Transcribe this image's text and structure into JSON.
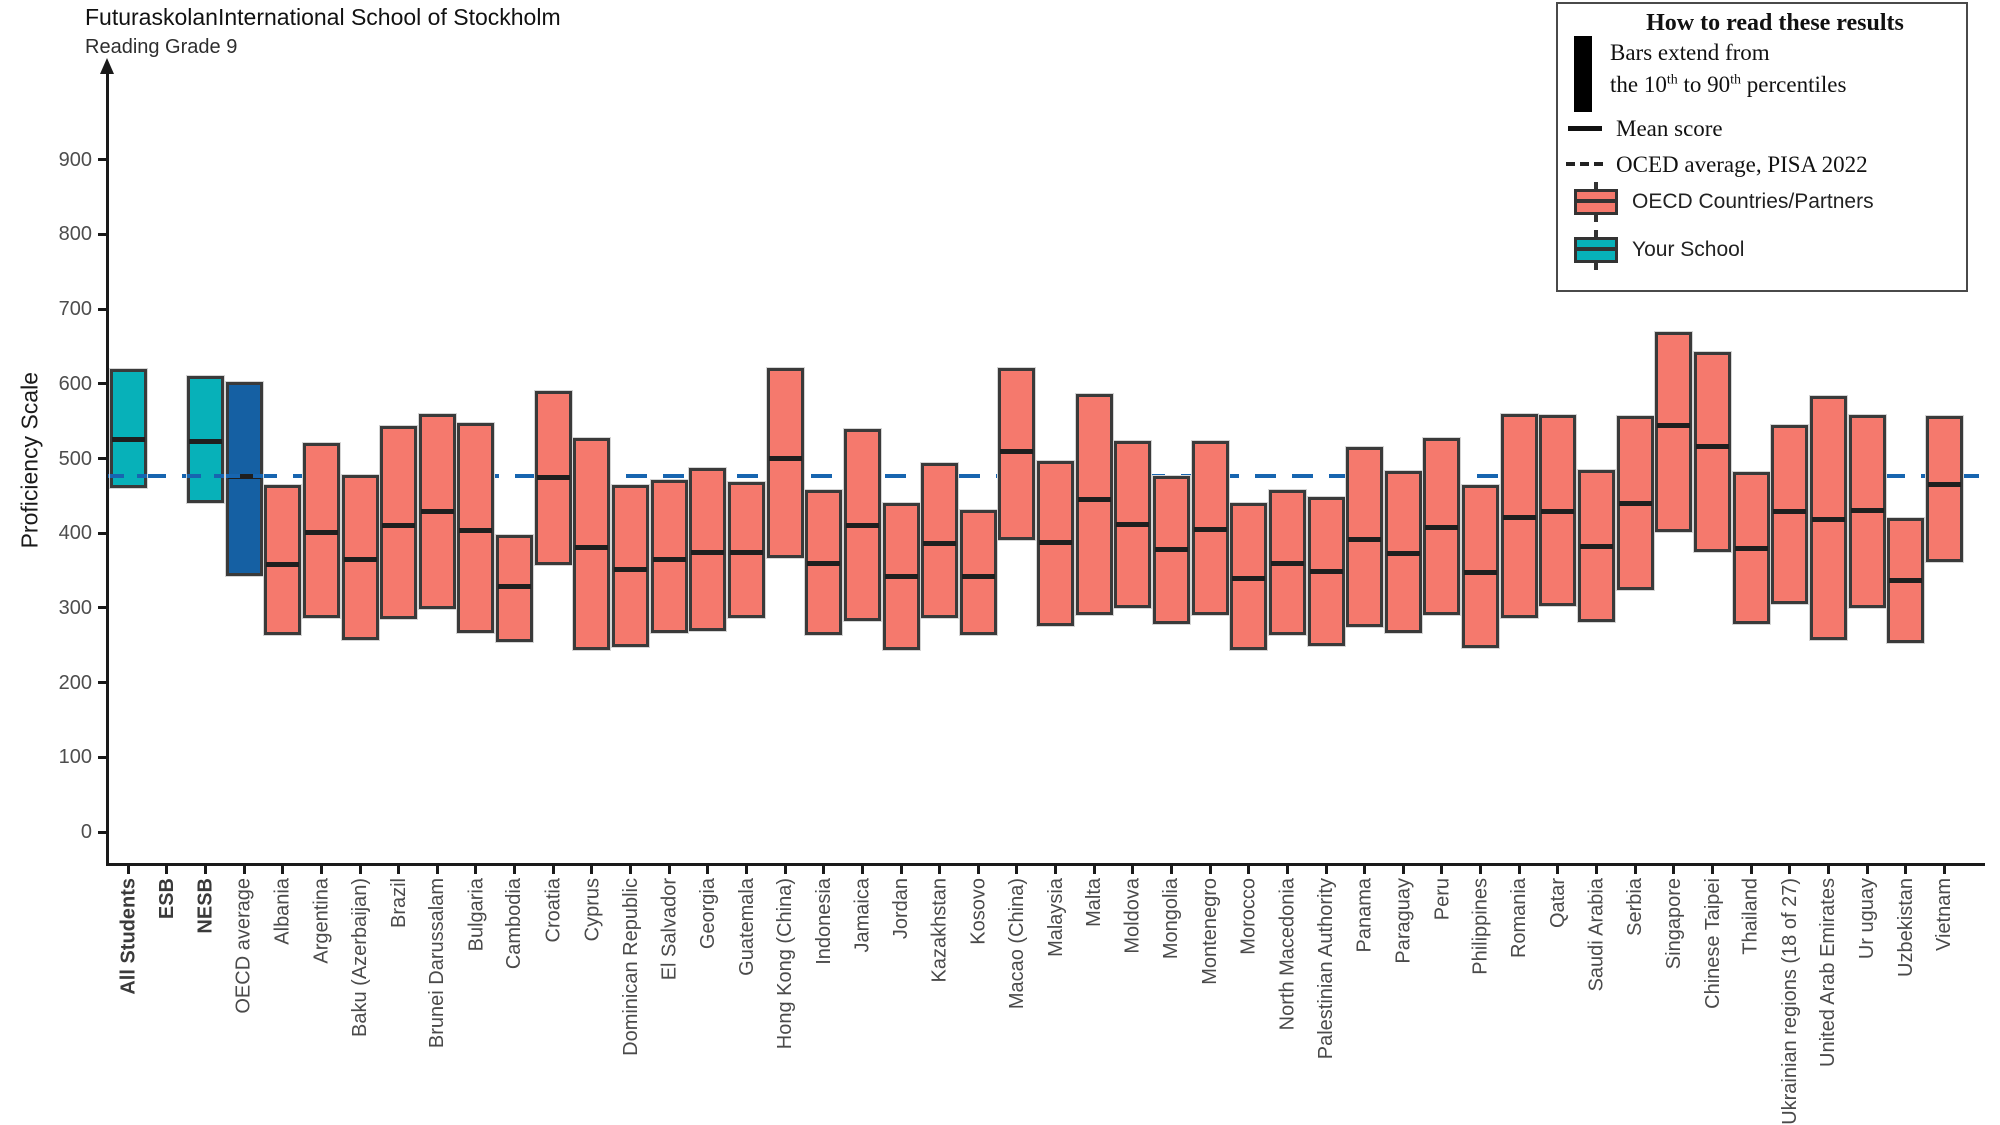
{
  "header": {
    "title": "FuturaskolanInternational School of Stockholm",
    "subtitle": "Reading Grade 9"
  },
  "legend": {
    "heading": "How to read these results",
    "bars_line1": "Bars extend from",
    "percentiles_segments": [
      "the 10",
      "th",
      " to 90",
      "th",
      " percentiles"
    ],
    "mean_label": "Mean score",
    "oecd_avg_label": "OCED average, PISA 2022",
    "oecd_partners_label": "OECD Countries/Partners",
    "your_school_label": "Your School"
  },
  "axis": {
    "y_title": "Proficiency Scale",
    "y_ticks": [
      0,
      100,
      200,
      300,
      400,
      500,
      600,
      700,
      800,
      900
    ]
  },
  "colors": {
    "salmon": "#F5796D",
    "teal": "#07B1B9",
    "navy": "#1560A3",
    "dashblue": "#1765B0",
    "bar_border": "#3A3A3A",
    "mean_line": "#1F1F1F"
  },
  "chart_data": {
    "type": "bar",
    "description": "Bars extend from 10th to 90th percentile, thick line = mean score",
    "oecd_avg_line": 476,
    "ylim": [
      0,
      960
    ],
    "series": [
      {
        "label": "All Students",
        "bold": true,
        "group": "school",
        "dash_overlay": true,
        "p10": 460,
        "mean": 525,
        "p90": 620
      },
      {
        "label": "ESB",
        "bold": true,
        "group": "school",
        "p10": null,
        "mean": null,
        "p90": null
      },
      {
        "label": "NESB",
        "bold": true,
        "group": "school",
        "dash_overlay": true,
        "p10": 440,
        "mean": 523,
        "p90": 610
      },
      {
        "label": "OECD average",
        "group": "avg",
        "dash_overlay": true,
        "p10": 343,
        "mean": 476,
        "p90": 603
      },
      {
        "label": "Albania",
        "group": "oecd",
        "p10": 264,
        "mean": 358,
        "p90": 465
      },
      {
        "label": "Argentina",
        "group": "oecd",
        "p10": 286,
        "mean": 401,
        "p90": 521
      },
      {
        "label": "Baku (Azerbaijan)",
        "group": "oecd",
        "p10": 257,
        "mean": 365,
        "p90": 478
      },
      {
        "label": "Brazil",
        "group": "oecd",
        "p10": 285,
        "mean": 410,
        "p90": 543
      },
      {
        "label": "Brunei Darussalam",
        "group": "oecd",
        "p10": 299,
        "mean": 429,
        "p90": 559
      },
      {
        "label": "Bulgaria",
        "group": "oecd",
        "p10": 266,
        "mean": 404,
        "p90": 548
      },
      {
        "label": "Cambodia",
        "group": "oecd",
        "p10": 255,
        "mean": 329,
        "p90": 398
      },
      {
        "label": "Croatia",
        "group": "oecd",
        "p10": 357,
        "mean": 475,
        "p90": 590
      },
      {
        "label": "Cyprus",
        "group": "oecd",
        "p10": 244,
        "mean": 381,
        "p90": 527
      },
      {
        "label": "Dominican Republic",
        "group": "oecd",
        "p10": 248,
        "mean": 351,
        "p90": 464
      },
      {
        "label": "El Salvador",
        "group": "oecd",
        "p10": 266,
        "mean": 365,
        "p90": 471
      },
      {
        "label": "Georgia",
        "group": "oecd",
        "p10": 269,
        "mean": 374,
        "p90": 487
      },
      {
        "label": "Guatemala",
        "group": "oecd",
        "p10": 286,
        "mean": 374,
        "p90": 469
      },
      {
        "label": "Hong Kong (China)",
        "group": "oecd",
        "p10": 367,
        "mean": 500,
        "p90": 621
      },
      {
        "label": "Indonesia",
        "group": "oecd",
        "p10": 264,
        "mean": 359,
        "p90": 458
      },
      {
        "label": "Jamaica",
        "group": "oecd",
        "p10": 282,
        "mean": 410,
        "p90": 539
      },
      {
        "label": "Jordan",
        "group": "oecd",
        "p10": 244,
        "mean": 342,
        "p90": 441
      },
      {
        "label": "Kazakhstan",
        "group": "oecd",
        "p10": 286,
        "mean": 386,
        "p90": 494
      },
      {
        "label": "Kosovo",
        "group": "oecd",
        "p10": 264,
        "mean": 342,
        "p90": 431
      },
      {
        "label": "Macao (China)",
        "group": "oecd",
        "p10": 391,
        "mean": 510,
        "p90": 621
      },
      {
        "label": "Malaysia",
        "group": "oecd",
        "p10": 276,
        "mean": 388,
        "p90": 496
      },
      {
        "label": "Malta",
        "group": "oecd",
        "p10": 291,
        "mean": 445,
        "p90": 587
      },
      {
        "label": "Moldova",
        "group": "oecd",
        "p10": 300,
        "mean": 411,
        "p90": 523
      },
      {
        "label": "Mongolia",
        "group": "oecd",
        "p10": 278,
        "mean": 378,
        "p90": 476
      },
      {
        "label": "Montenegro",
        "group": "oecd",
        "p10": 290,
        "mean": 405,
        "p90": 523
      },
      {
        "label": "Morocco",
        "group": "oecd",
        "p10": 244,
        "mean": 339,
        "p90": 440
      },
      {
        "label": "North Macedonia",
        "group": "oecd",
        "p10": 264,
        "mean": 359,
        "p90": 458
      },
      {
        "label": "Palestinian Authority",
        "group": "oecd",
        "p10": 249,
        "mean": 349,
        "p90": 448
      },
      {
        "label": "Panama",
        "group": "oecd",
        "p10": 275,
        "mean": 392,
        "p90": 516
      },
      {
        "label": "Paraguay",
        "group": "oecd",
        "p10": 266,
        "mean": 373,
        "p90": 483
      },
      {
        "label": "Peru",
        "group": "oecd",
        "p10": 290,
        "mean": 408,
        "p90": 528
      },
      {
        "label": "Philippines",
        "group": "oecd",
        "p10": 246,
        "mean": 347,
        "p90": 465
      },
      {
        "label": "Romania",
        "group": "oecd",
        "p10": 287,
        "mean": 421,
        "p90": 559
      },
      {
        "label": "Qatar",
        "group": "oecd",
        "p10": 302,
        "mean": 429,
        "p90": 558
      },
      {
        "label": "Saudi Arabia",
        "group": "oecd",
        "p10": 281,
        "mean": 382,
        "p90": 485
      },
      {
        "label": "Serbia",
        "group": "oecd",
        "p10": 324,
        "mean": 440,
        "p90": 557
      },
      {
        "label": "Singapore",
        "group": "oecd",
        "p10": 401,
        "mean": 544,
        "p90": 670
      },
      {
        "label": "Chinese Taipei",
        "group": "oecd",
        "p10": 375,
        "mean": 516,
        "p90": 643
      },
      {
        "label": "Thailand",
        "group": "oecd",
        "p10": 279,
        "mean": 380,
        "p90": 482
      },
      {
        "label": "Ukrainian regions (18 of 27)",
        "group": "oecd",
        "p10": 305,
        "mean": 429,
        "p90": 545
      },
      {
        "label": "United Arab Emirates",
        "group": "oecd",
        "p10": 257,
        "mean": 418,
        "p90": 584
      },
      {
        "label": "Ur uguay",
        "group": "oecd",
        "p10": 300,
        "mean": 431,
        "p90": 558
      },
      {
        "label": "Uzbekistan",
        "group": "oecd",
        "p10": 253,
        "mean": 337,
        "p90": 420
      },
      {
        "label": "Vietnam",
        "group": "oecd",
        "p10": 362,
        "mean": 465,
        "p90": 557
      }
    ]
  }
}
